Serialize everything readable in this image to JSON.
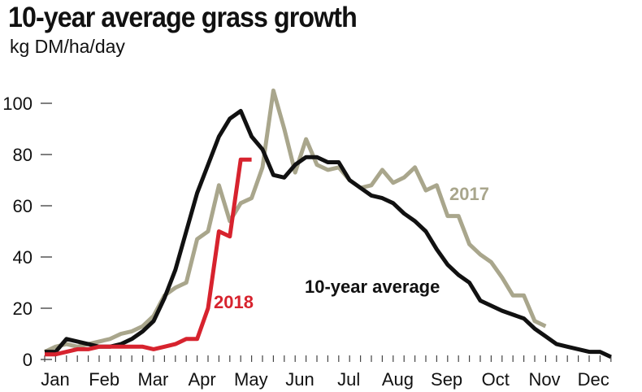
{
  "chart_data": {
    "type": "line",
    "title": "10-year average grass growth",
    "subtitle": "kg DM/ha/day",
    "xlabel": "",
    "ylabel": "",
    "x_unit": "week of year",
    "months": [
      "Jan",
      "Feb",
      "Mar",
      "Apr",
      "May",
      "Jun",
      "Jul",
      "Aug",
      "Sep",
      "Oct",
      "Nov",
      "Dec"
    ],
    "yticks": [
      0,
      20,
      40,
      60,
      80,
      100
    ],
    "ylim": [
      0,
      110
    ],
    "xlim": [
      1,
      53
    ],
    "grid": false,
    "series": [
      {
        "name": "10-year average",
        "color": "#111111",
        "x_start": 1,
        "values": [
          3,
          3,
          8,
          7,
          6,
          5,
          5,
          6,
          8,
          11,
          15,
          24,
          35,
          50,
          65,
          76,
          87,
          94,
          97,
          87,
          82,
          72,
          71,
          76,
          79,
          79,
          77,
          77,
          70,
          67,
          64,
          63,
          61,
          57,
          54,
          50,
          43,
          37,
          33,
          30,
          23,
          21,
          19,
          17.5,
          16,
          12,
          9,
          6,
          5,
          4,
          3,
          3,
          1
        ]
      },
      {
        "name": "2017",
        "color": "#a9a68c",
        "x_start": 1,
        "values": [
          3,
          5,
          6,
          5,
          6,
          7,
          8,
          10,
          11,
          13,
          17,
          25,
          28,
          30,
          47,
          50,
          68,
          54,
          61,
          63,
          75,
          105,
          90,
          73,
          86,
          76,
          74,
          75,
          70,
          67,
          68,
          74,
          69,
          71,
          75,
          66,
          68,
          56,
          56,
          45,
          41,
          38,
          32,
          25,
          25,
          15,
          13
        ]
      },
      {
        "name": "2018",
        "color": "#d7232e",
        "x_start": 1,
        "values": [
          2,
          2,
          3,
          4,
          4,
          5,
          5,
          5,
          5,
          5,
          4,
          5,
          6,
          8,
          8,
          20,
          50,
          48,
          78,
          78
        ]
      }
    ]
  }
}
